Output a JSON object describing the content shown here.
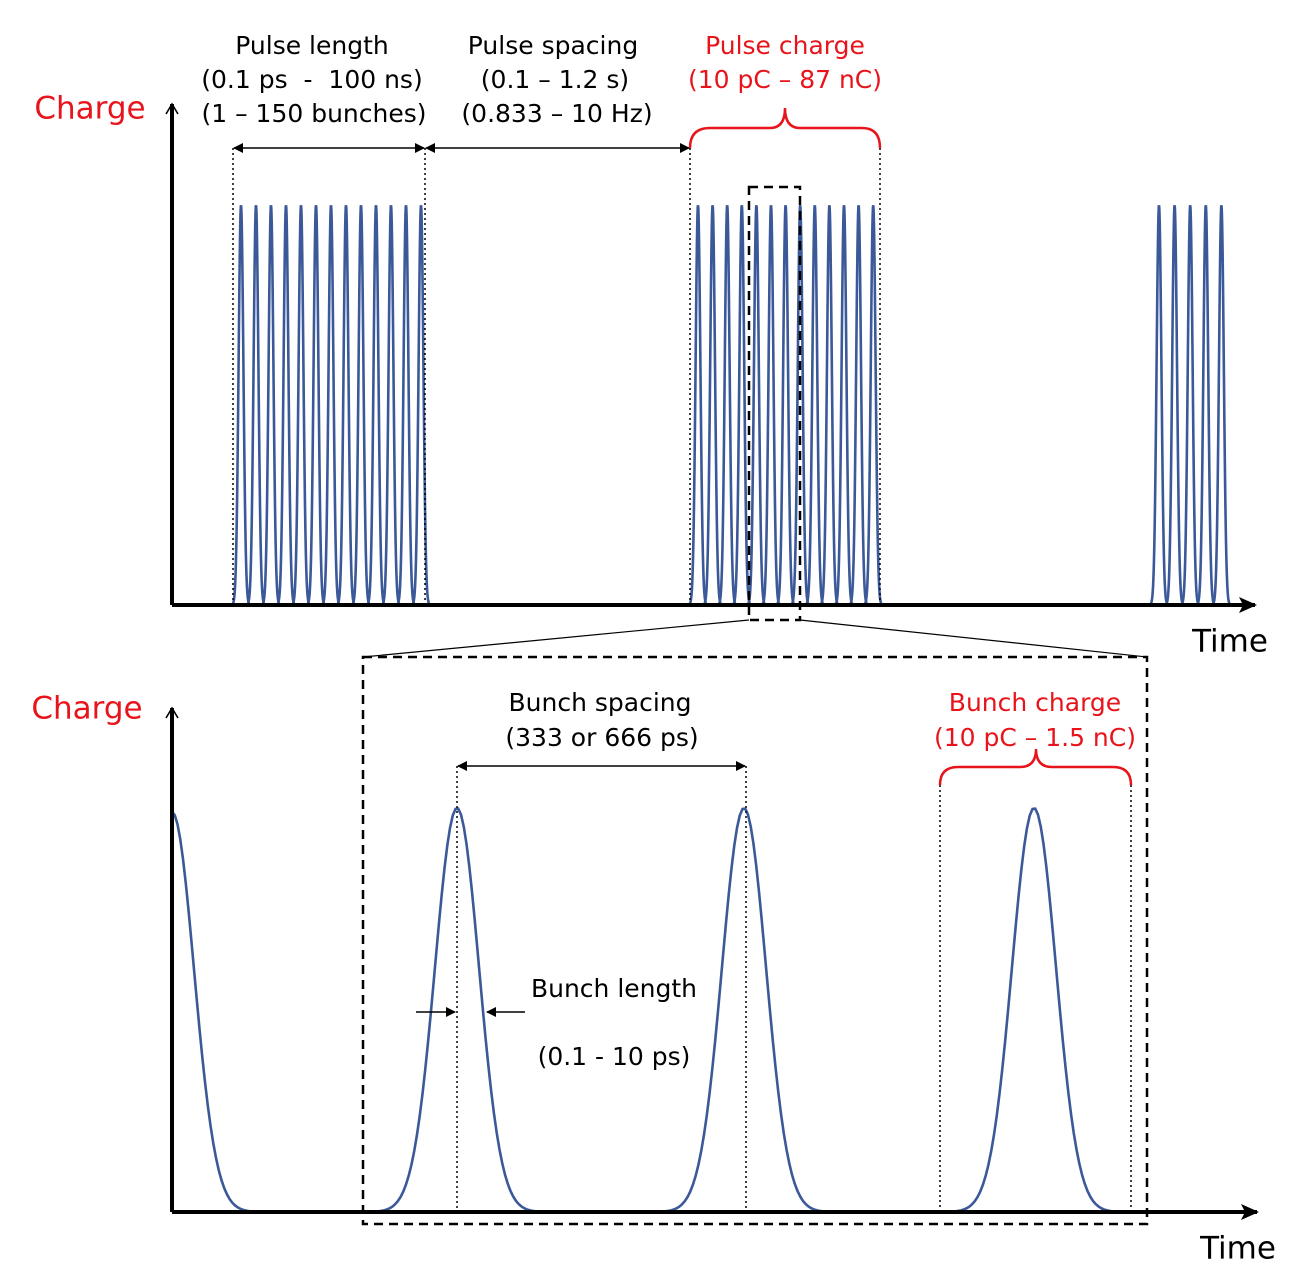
{
  "top_panel": {
    "y_axis_label": "Charge",
    "x_axis_label": "Time",
    "pulse_length": [
      "Pulse length",
      "(0.1 ps  -  100 ns)",
      "(1 – 150 bunches)"
    ],
    "pulse_spacing": [
      "Pulse spacing",
      "(0.1 – 1.2 s)",
      "(0.833 – 10 Hz)"
    ],
    "pulse_charge": [
      "Pulse charge",
      "(10 pC – 87 nC)"
    ]
  },
  "bottom_panel": {
    "y_axis_label": "Charge",
    "x_axis_label": "Time",
    "bunch_spacing": [
      "Bunch spacing",
      "(333 or 666 ps)"
    ],
    "bunch_charge": [
      "Bunch charge",
      "(10 pC – 1.5 nC)"
    ],
    "bunch_length": [
      "Bunch length",
      "(0.1 - 10 ps)"
    ]
  }
}
